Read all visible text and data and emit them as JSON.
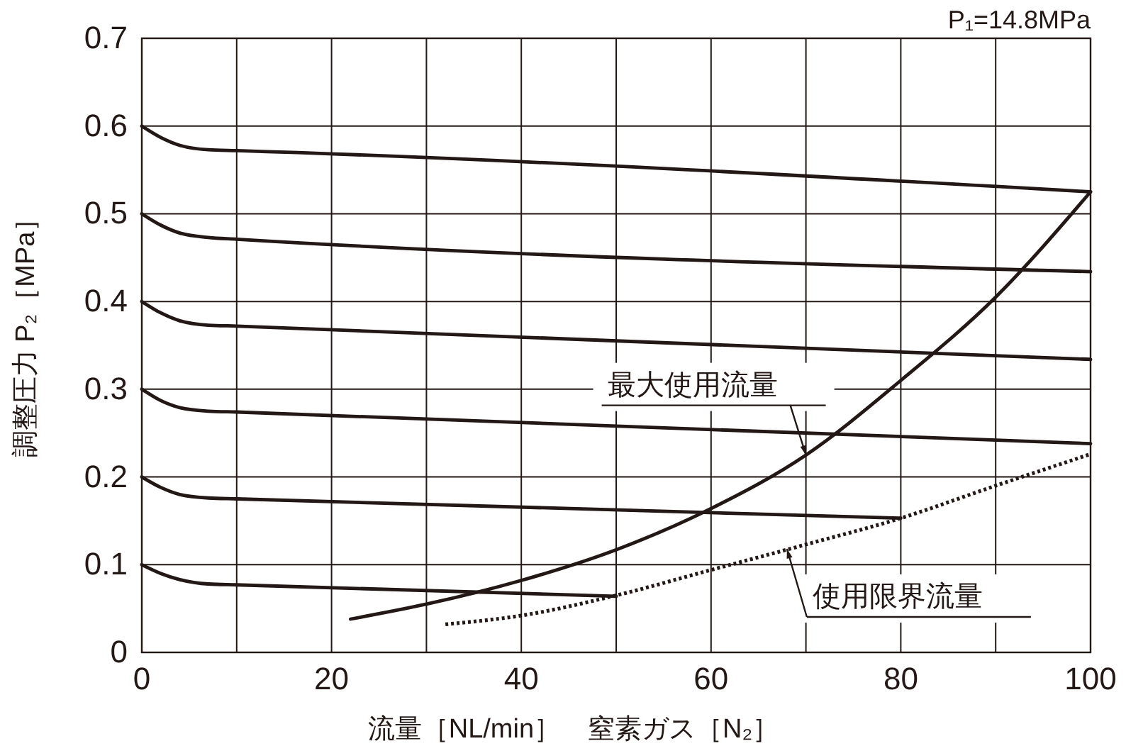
{
  "chart_data": {
    "type": "line",
    "title": "P₁=14.8MPa",
    "xlabel": "流量［NL/min］　窒素ガス［N₂］",
    "ylabel": "調整圧力 P₂［MPa］",
    "xlim": [
      0,
      100
    ],
    "ylim": [
      0,
      0.7
    ],
    "xticks": [
      0,
      {
        "value": 10,
        "label": null
      },
      20,
      {
        "value": 30,
        "label": null
      },
      40,
      {
        "value": 50,
        "label": null
      },
      60,
      {
        "value": 70,
        "label": null
      },
      80,
      {
        "value": 90,
        "label": null
      },
      100
    ],
    "yticks": [
      0,
      0.1,
      0.2,
      0.3,
      0.4,
      0.5,
      0.6,
      0.7
    ],
    "grid": true,
    "marker": "none",
    "series": [
      {
        "color": "#231815",
        "x": [
          0,
          2,
          4,
          7,
          10,
          100
        ],
        "values": [
          0.6,
          0.587,
          0.578,
          0.573,
          0.572,
          0.525
        ]
      },
      {
        "color": "#231815",
        "x": [
          0,
          2,
          4,
          7,
          10,
          100
        ],
        "values": [
          0.5,
          0.487,
          0.478,
          0.473,
          0.471,
          0.434
        ]
      },
      {
        "color": "#231815",
        "x": [
          0,
          2,
          4,
          7,
          10,
          100
        ],
        "values": [
          0.4,
          0.387,
          0.378,
          0.373,
          0.372,
          0.334
        ]
      },
      {
        "color": "#231815",
        "x": [
          0,
          2,
          4,
          7,
          10,
          100
        ],
        "values": [
          0.3,
          0.287,
          0.279,
          0.275,
          0.274,
          0.238
        ]
      },
      {
        "color": "#231815",
        "x": [
          0,
          2,
          4,
          7,
          10,
          80
        ],
        "values": [
          0.2,
          0.188,
          0.18,
          0.176,
          0.175,
          0.153
        ]
      },
      {
        "color": "#231815",
        "x": [
          0,
          2,
          4,
          7,
          10,
          50
        ],
        "values": [
          0.1,
          0.09,
          0.083,
          0.078,
          0.077,
          0.064
        ]
      },
      {
        "color": "#231815",
        "x": [
          22,
          30,
          40,
          50,
          60,
          70,
          80,
          90,
          100
        ],
        "values": [
          0.038,
          0.055,
          0.082,
          0.117,
          0.164,
          0.225,
          0.31,
          0.405,
          0.525
        ]
      },
      {
        "color": "#231815",
        "line_style": "dotted",
        "x": [
          32,
          40,
          50,
          60,
          70,
          80,
          90,
          100
        ],
        "values": [
          0.032,
          0.042,
          0.065,
          0.094,
          0.123,
          0.153,
          0.19,
          0.226
        ]
      }
    ],
    "annotations": [
      {
        "text": "最大使用流量",
        "x": 70,
        "y": 0.225
      },
      {
        "text": "使用限界流量",
        "x": 68,
        "y": 0.118
      }
    ]
  }
}
